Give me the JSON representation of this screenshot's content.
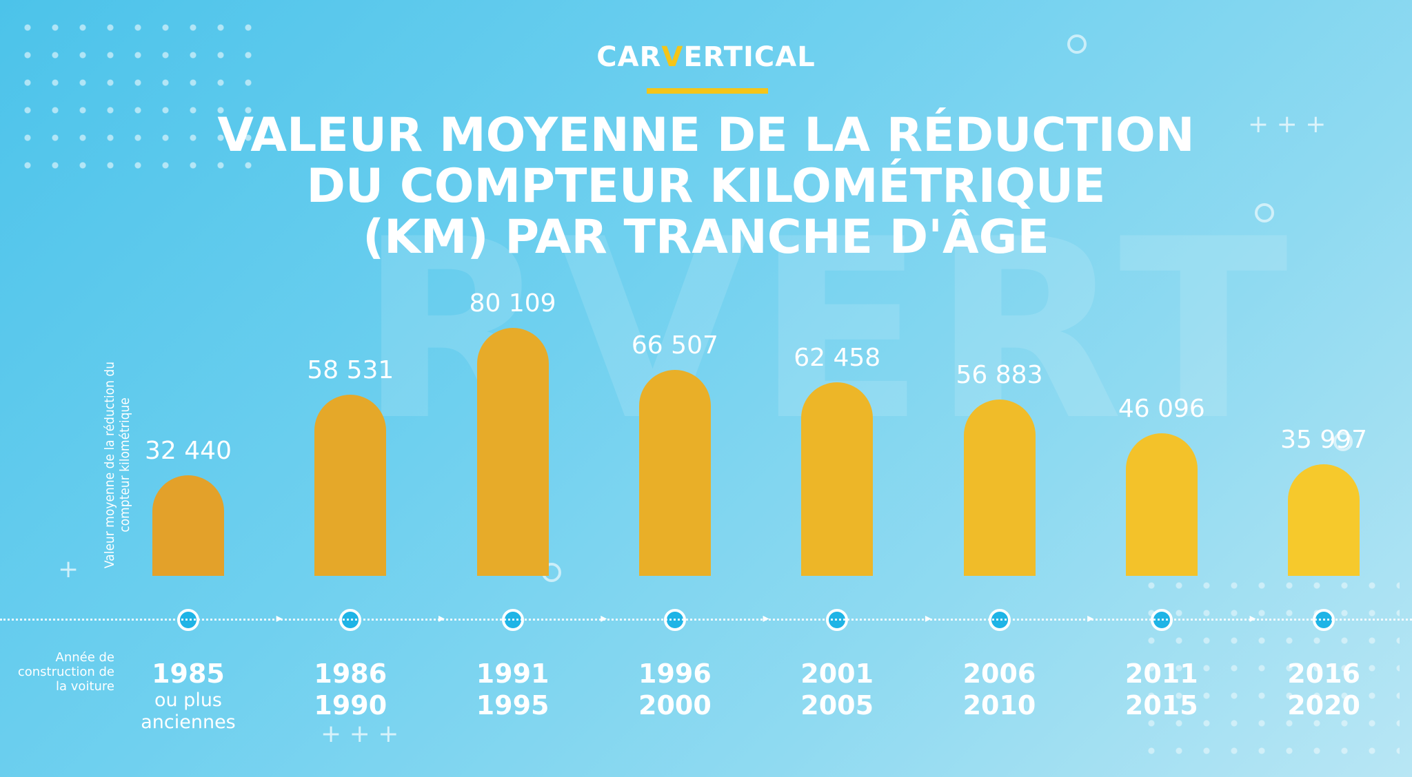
{
  "brand": {
    "logo_text_before": "CAR",
    "logo_text_v": "V",
    "logo_text_after": "ERTICAL",
    "accent_color": "#f5c518"
  },
  "chart_data": {
    "type": "bar",
    "title": [
      "VALEUR MOYENNE DE LA RÉDUCTION",
      "DU COMPTEUR KILOMÉTRIQUE",
      "(KM) PAR TRANCHE D'ÂGE"
    ],
    "ylabel": "Valeur moyenne de la réduction du compteur kilométrique",
    "xlabel": "Année de construction de la voiture",
    "categories": [
      [
        "1985",
        "ou plus anciennes"
      ],
      [
        "1986",
        "1990"
      ],
      [
        "1991",
        "1995"
      ],
      [
        "1996",
        "2000"
      ],
      [
        "2001",
        "2005"
      ],
      [
        "2006",
        "2010"
      ],
      [
        "2011",
        "2015"
      ],
      [
        "2016",
        "2020"
      ]
    ],
    "values": [
      32440,
      58531,
      80109,
      66507,
      62458,
      56883,
      46096,
      35997
    ],
    "value_labels": [
      "32 440",
      "58 531",
      "80 109",
      "66 507",
      "62 458",
      "56 883",
      "46 096",
      "35 997"
    ],
    "bar_colors": [
      "#e3a12a",
      "#e5a829",
      "#e7ab29",
      "#e9af28",
      "#edb628",
      "#f0bc29",
      "#f3c22a",
      "#f6c92c"
    ],
    "ylim": [
      0,
      80109
    ],
    "grid": false
  }
}
